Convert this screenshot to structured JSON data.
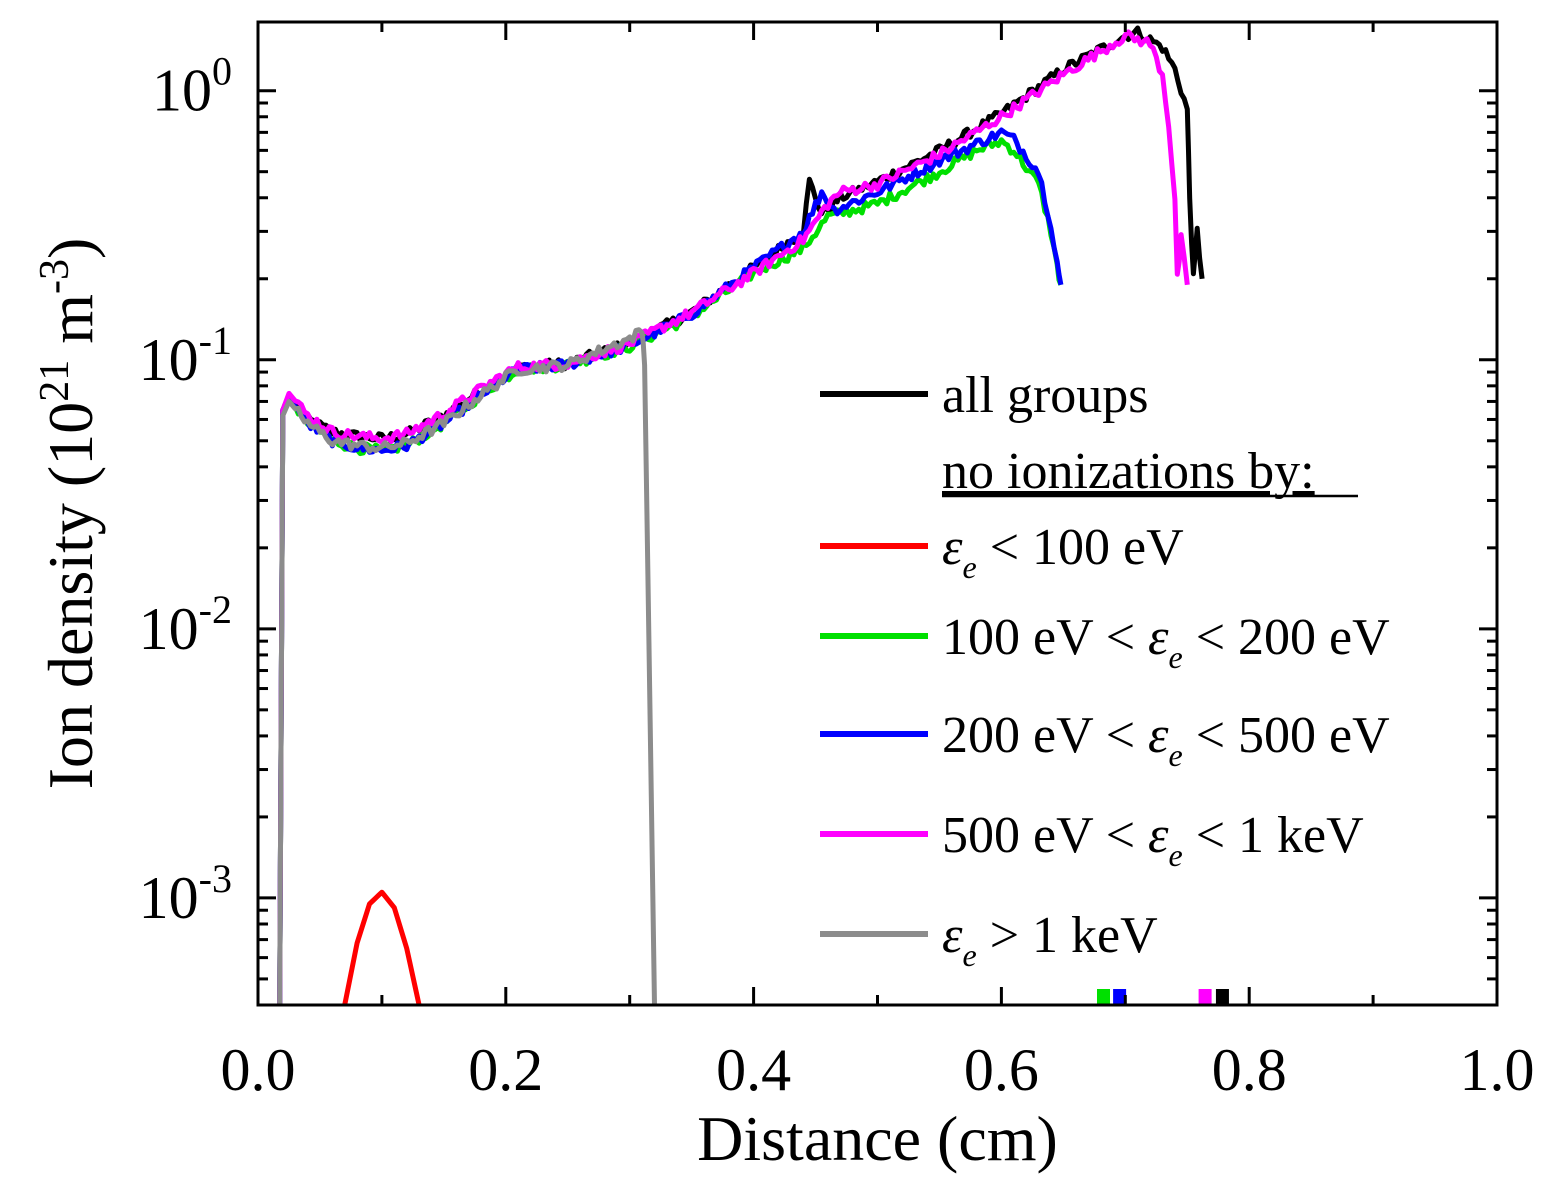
{
  "chart_data": {
    "type": "line",
    "title": "",
    "xlabel": "Distance (cm)",
    "ylabel_parts": {
      "text": "Ion density (10",
      "exp": "21",
      "unit": " m",
      "unit_exp": "-3",
      "close": ")"
    },
    "xscale": "linear",
    "yscale": "log",
    "xlim": [
      0.0,
      1.0
    ],
    "ylim": [
      0.0004,
      1.8
    ],
    "x_ticks": [
      "0.0",
      "0.2",
      "0.4",
      "0.6",
      "0.8",
      "1.0"
    ],
    "x_tick_values": [
      0.0,
      0.2,
      0.4,
      0.6,
      0.8,
      1.0
    ],
    "y_ticks": [
      {
        "value": 1,
        "base": "10",
        "exp": "0"
      },
      {
        "value": 0.1,
        "base": "10",
        "exp": "-1"
      },
      {
        "value": 0.01,
        "base": "10",
        "exp": "-2"
      },
      {
        "value": 0.001,
        "base": "10",
        "exp": "-3"
      }
    ],
    "legend": {
      "position": "right",
      "subheading": "no ionizations by:",
      "entries": [
        {
          "key": "all",
          "color": "#000000",
          "pre": "all groups",
          "sym": "",
          "sub": "",
          "post": ""
        },
        {
          "key": "lt100",
          "color": "#ff0000",
          "pre": "",
          "sym": "ε",
          "sub": "e",
          "post": " < 100 eV"
        },
        {
          "key": "100_200",
          "color": "#00e000",
          "pre": "100 eV < ",
          "sym": "ε",
          "sub": "e",
          "post": " < 200 eV"
        },
        {
          "key": "200_500",
          "color": "#0000ff",
          "pre": "200 eV < ",
          "sym": "ε",
          "sub": "e",
          "post": " < 500 eV"
        },
        {
          "key": "500_1k",
          "color": "#ff00ff",
          "pre": "500 eV < ",
          "sym": "ε",
          "sub": "e",
          "post": " < 1 keV"
        },
        {
          "key": "gt1k",
          "color": "#8c8c8c",
          "pre": "",
          "sym": "ε",
          "sub": "e",
          "post": " > 1 keV"
        }
      ]
    },
    "series": [
      {
        "name": "all groups",
        "color": "#000000",
        "x": [
          0.0175,
          0.02,
          0.025,
          0.04,
          0.06,
          0.08,
          0.1,
          0.12,
          0.15,
          0.18,
          0.2,
          0.21,
          0.25,
          0.3,
          0.35,
          0.4,
          0.44,
          0.445,
          0.455,
          0.47,
          0.5,
          0.55,
          0.6,
          0.65,
          0.7,
          0.71,
          0.73,
          0.74,
          0.75,
          0.752,
          0.755,
          0.758,
          0.762
        ],
        "y": [
          0.0004,
          0.065,
          0.074,
          0.06,
          0.054,
          0.052,
          0.051,
          0.053,
          0.062,
          0.077,
          0.088,
          0.094,
          0.097,
          0.115,
          0.15,
          0.22,
          0.3,
          0.46,
          0.35,
          0.4,
          0.46,
          0.6,
          0.82,
          1.2,
          1.6,
          1.65,
          1.45,
          1.2,
          0.85,
          0.4,
          0.2,
          0.3,
          0.2
        ]
      },
      {
        "name": "ε_e < 100 eV",
        "color": "#ff0000",
        "x": [
          0.07,
          0.08,
          0.09,
          0.1,
          0.11,
          0.12,
          0.13
        ],
        "y": [
          0.0004,
          0.00068,
          0.00095,
          0.00105,
          0.00092,
          0.00065,
          0.0004
        ]
      },
      {
        "name": "100 eV < ε_e < 200 eV",
        "color": "#00e000",
        "x": [
          0.0175,
          0.02,
          0.025,
          0.04,
          0.06,
          0.08,
          0.1,
          0.12,
          0.15,
          0.18,
          0.2,
          0.21,
          0.25,
          0.3,
          0.35,
          0.4,
          0.44,
          0.46,
          0.5,
          0.55,
          0.58,
          0.6,
          0.61,
          0.63,
          0.64,
          0.645,
          0.648
        ],
        "y": [
          0.0004,
          0.065,
          0.072,
          0.058,
          0.05,
          0.047,
          0.046,
          0.048,
          0.058,
          0.074,
          0.086,
          0.092,
          0.096,
          0.112,
          0.145,
          0.21,
          0.26,
          0.34,
          0.38,
          0.5,
          0.6,
          0.65,
          0.6,
          0.45,
          0.3,
          0.22,
          0.19
        ]
      },
      {
        "name": "200 eV < ε_e < 500 eV",
        "color": "#0000ff",
        "x": [
          0.0175,
          0.02,
          0.025,
          0.04,
          0.06,
          0.08,
          0.1,
          0.12,
          0.15,
          0.18,
          0.2,
          0.21,
          0.25,
          0.3,
          0.35,
          0.4,
          0.44,
          0.455,
          0.465,
          0.5,
          0.55,
          0.6,
          0.61,
          0.63,
          0.64,
          0.645,
          0.648
        ],
        "y": [
          0.0004,
          0.065,
          0.072,
          0.058,
          0.05,
          0.047,
          0.046,
          0.048,
          0.058,
          0.074,
          0.086,
          0.092,
          0.096,
          0.113,
          0.148,
          0.22,
          0.3,
          0.42,
          0.36,
          0.42,
          0.55,
          0.7,
          0.66,
          0.5,
          0.32,
          0.23,
          0.19
        ]
      },
      {
        "name": "500 eV < ε_e < 1 keV",
        "color": "#ff00ff",
        "x": [
          0.0175,
          0.02,
          0.025,
          0.04,
          0.06,
          0.08,
          0.1,
          0.12,
          0.15,
          0.18,
          0.2,
          0.21,
          0.25,
          0.3,
          0.35,
          0.4,
          0.44,
          0.46,
          0.47,
          0.5,
          0.55,
          0.6,
          0.65,
          0.7,
          0.72,
          0.73,
          0.735,
          0.74,
          0.742,
          0.745,
          0.75
        ],
        "y": [
          0.0004,
          0.065,
          0.075,
          0.062,
          0.054,
          0.052,
          0.051,
          0.053,
          0.063,
          0.078,
          0.089,
          0.094,
          0.097,
          0.115,
          0.15,
          0.21,
          0.28,
          0.38,
          0.42,
          0.45,
          0.58,
          0.8,
          1.15,
          1.6,
          1.5,
          1.15,
          0.75,
          0.4,
          0.2,
          0.28,
          0.19
        ]
      },
      {
        "name": "ε_e > 1 keV",
        "color": "#8c8c8c",
        "x": [
          0.0175,
          0.02,
          0.025,
          0.04,
          0.06,
          0.08,
          0.1,
          0.12,
          0.15,
          0.18,
          0.2,
          0.21,
          0.25,
          0.28,
          0.3,
          0.31,
          0.312,
          0.32
        ],
        "y": [
          0.0004,
          0.062,
          0.07,
          0.058,
          0.05,
          0.048,
          0.047,
          0.049,
          0.058,
          0.074,
          0.086,
          0.092,
          0.096,
          0.11,
          0.12,
          0.128,
          0.1,
          0.0004
        ]
      }
    ],
    "axis_markers": [
      {
        "color": "#00e000",
        "x": 0.682
      },
      {
        "color": "#0000ff",
        "x": 0.695
      },
      {
        "color": "#ff00ff",
        "x": 0.764
      },
      {
        "color": "#000000",
        "x": 0.778
      }
    ]
  }
}
